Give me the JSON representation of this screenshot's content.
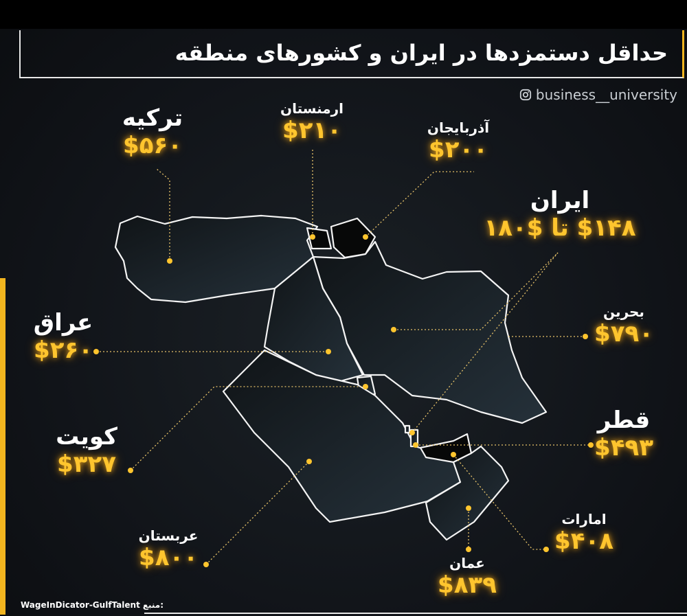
{
  "header": {
    "title": "حداقل دستمزدها در ایران و کشورهای منطقه",
    "handle": "business__university"
  },
  "countries": [
    {
      "name": "ترکیه",
      "wage": "$۵۶۰"
    },
    {
      "name": "ارمنستان",
      "wage": "$۲۱۰"
    },
    {
      "name": "آذربایجان",
      "wage": "$۲۰۰"
    },
    {
      "name": "ایران",
      "wage": "$۱۴۸ تا $۱۸۰"
    },
    {
      "name": "بحرین",
      "wage": "$۷۹۰"
    },
    {
      "name": "عراق",
      "wage": "$۲۶۰"
    },
    {
      "name": "قطر",
      "wage": "$۴۹۳"
    },
    {
      "name": "کویت",
      "wage": "$۳۲۷"
    },
    {
      "name": "عربستان",
      "wage": "$۸۰۰"
    },
    {
      "name": "امارات",
      "wage": "$۴۰۸"
    },
    {
      "name": "عمان",
      "wage": "$۸۳۹"
    }
  ],
  "footer": {
    "source": "WageInDicator-GulfTalent",
    "source_label": "منبع:"
  }
}
